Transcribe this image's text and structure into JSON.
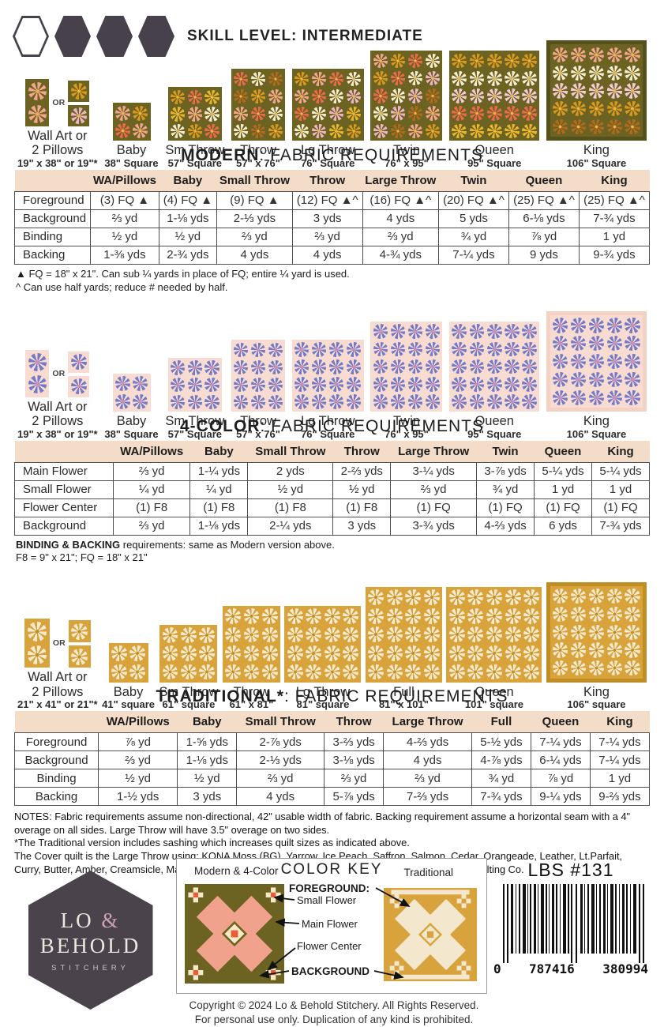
{
  "skill": {
    "label": "SKILL LEVEL: INTERMEDIATE"
  },
  "labels": {
    "or": "OR"
  },
  "modern": {
    "heading": {
      "bold": "MODERN",
      "rest": ": FABRIC REQUIREMENTS"
    },
    "sizes": [
      {
        "name": "Wall Art or",
        "name2": "2 Pillows",
        "dims": "19\" x 38\" or 19\"*"
      },
      {
        "name": "Baby",
        "dims": "38\" Square"
      },
      {
        "name": "Sm Throw",
        "dims": "57\" Square"
      },
      {
        "name": "Throw",
        "dims": "57\" x 76\""
      },
      {
        "name": "Lg Throw",
        "dims": "76\" Square"
      },
      {
        "name": "Twin",
        "dims": "76\" x 95\""
      },
      {
        "name": "Queen",
        "dims": "95\" Square"
      },
      {
        "name": "King",
        "dims": "106\" Square"
      }
    ],
    "table": {
      "headers": [
        "",
        "WA/Pillows",
        "Baby",
        "Small Throw",
        "Throw",
        "Large Throw",
        "Twin",
        "Queen",
        "King"
      ],
      "rows": [
        {
          "label": "Foreground",
          "cells": [
            "(3) FQ ▲",
            "(4) FQ ▲",
            "(9) FQ ▲",
            "(12) FQ ▲^",
            "(16) FQ ▲^",
            "(20) FQ ▲^",
            "(25) FQ ▲^",
            "(25) FQ ▲^"
          ]
        },
        {
          "label": "Background",
          "cells": [
            "⅔ yd",
            "1-⅛ yds",
            "2-⅓ yds",
            "3 yds",
            "4 yds",
            "5 yds",
            "6-⅛ yds",
            "7-¾ yds"
          ]
        },
        {
          "label": "Binding",
          "cells": [
            "½ yd",
            "½ yd",
            "⅔ yd",
            "⅔ yd",
            "⅔ yd",
            "¾ yd",
            "⅞ yd",
            "1 yd"
          ]
        },
        {
          "label": "Backing",
          "cells": [
            "1-⅜ yds",
            "2-¾ yds",
            "4 yds",
            "4 yds",
            "4-¾ yds",
            "7-¼ yds",
            "9 yds",
            "9-¾ yds"
          ]
        }
      ]
    },
    "notes": [
      "▲ FQ = 18\" x 21\". Can sub ¼ yards in place of FQ; entire ¼ yard is used.",
      "^ Can use half yards; reduce # needed by half."
    ]
  },
  "fourcolor": {
    "heading": {
      "bold": "4-COLOR",
      "rest": ": FABRIC REQUIREMENTS"
    },
    "sizes": [
      {
        "name": "Wall Art or",
        "name2": "2 Pillows",
        "dims": "19\" x 38\" or 19\"*"
      },
      {
        "name": "Baby",
        "dims": "38\" Square"
      },
      {
        "name": "Sm Throw",
        "dims": "57\" Square"
      },
      {
        "name": "Throw",
        "dims": "57\" x 76\""
      },
      {
        "name": "Lg Throw",
        "dims": "76\" Square"
      },
      {
        "name": "Twin",
        "dims": "76\" x 95\""
      },
      {
        "name": "Queen",
        "dims": "95\" Square"
      },
      {
        "name": "King",
        "dims": "106\" Square"
      }
    ],
    "table": {
      "headers": [
        "",
        "WA/Pillows",
        "Baby",
        "Small Throw",
        "Throw",
        "Large Throw",
        "Twin",
        "Queen",
        "King"
      ],
      "rows": [
        {
          "label": "Main Flower",
          "cells": [
            "⅔ yd",
            "1-¼ yds",
            "2 yds",
            "2-⅔ yds",
            "3-¼ yds",
            "3-⅞ yds",
            "5-¼ yds",
            "5-¼ yds"
          ]
        },
        {
          "label": "Small Flower",
          "cells": [
            "¼ yd",
            "¼ yd",
            "½ yd",
            "½ yd",
            "⅔ yd",
            "¾ yd",
            "1 yd",
            "1 yd"
          ]
        },
        {
          "label": "Flower Center",
          "cells": [
            "(1) F8",
            "(1) F8",
            "(1) F8",
            "(1) F8",
            "(1) FQ",
            "(1) FQ",
            "(1) FQ",
            "(1) FQ"
          ]
        },
        {
          "label": "Background",
          "cells": [
            "⅔ yd",
            "1-⅛ yds",
            "2-¼ yds",
            "3 yds",
            "3-¾ yds",
            "4-⅔ yds",
            "6 yds",
            "7-¾ yds"
          ]
        }
      ]
    },
    "note_bold": "BINDING & BACKING",
    "note_rest": " requirements: same as Modern version above.",
    "note_line2": "F8 = 9\" x 21\"; FQ = 18\" x 21\""
  },
  "traditional": {
    "heading": {
      "bold": "TRADITIONAL*",
      "rest": ": FABRIC REQUIREMENTS"
    },
    "sizes": [
      {
        "name": "Wall Art or",
        "name2": "2 Pillows",
        "dims": "21\" x 41\" or 21\"*"
      },
      {
        "name": "Baby",
        "dims": "41\" square"
      },
      {
        "name": "Sm Throw",
        "dims": "61\" square"
      },
      {
        "name": "Throw",
        "dims": "61\" x 81\""
      },
      {
        "name": "Lg Throw",
        "dims": "81\" square"
      },
      {
        "name": "Full",
        "dims": "81\" x 101\""
      },
      {
        "name": "Queen",
        "dims": "101\" square"
      },
      {
        "name": "King",
        "dims": "106\" square"
      }
    ],
    "table": {
      "headers": [
        "",
        "WA/Pillows",
        "Baby",
        "Small Throw",
        "Throw",
        "Large Throw",
        "Full",
        "Queen",
        "King"
      ],
      "rows": [
        {
          "label": "Foreground",
          "cells": [
            "⅞ yd",
            "1-⅝ yds",
            "2-⅞ yds",
            "3-⅔ yds",
            "4-⅔ yds",
            "5-½ yds",
            "7-¼ yds",
            "7-¼ yds"
          ]
        },
        {
          "label": "Background",
          "cells": [
            "⅔ yd",
            "1-⅛ yds",
            "2-⅓ yds",
            "3-⅛ yds",
            "4 yds",
            "4-⅞ yds",
            "6-¼ yds",
            "7-¼ yds"
          ]
        },
        {
          "label": "Binding",
          "cells": [
            "½ yd",
            "½ yd",
            "⅔ yd",
            "⅔ yd",
            "⅔ yd",
            "¾ yd",
            "⅞ yd",
            "1 yd"
          ]
        },
        {
          "label": "Backing",
          "cells": [
            "1-½ yds",
            "3 yds",
            "4 yds",
            "5-⅞ yds",
            "7-⅔ yds",
            "7-¾ yds",
            "9-¼ yds",
            "9-⅔ yds"
          ]
        }
      ]
    }
  },
  "notes_footer": [
    "NOTES: Fabric requirements assume non-directional, 42\" usable width of fabric. Backing requirement assume a horizontal seam with a 4\" overage on all sides. Large Throw will have 3.5\" overage on two sides.",
    "*The Traditional version includes sashing which increases quilt sizes as indicated above.",
    "The Cover quilt is the Large Throw using: KONA Moss (BG), Yarrow, Ice Peach, Saffron, Salmon, Cedar, Orangeade, Leather, Lt.Parfait, Curry, Butter, Amber, Creamsicle, Mango, Grellow, Nectarine, Peach. Longarm quilting by: Blue Ridge Quilting Co."
  ],
  "logo": {
    "line1_lo": "LO ",
    "line1_amp": "&",
    "line2": "BEHOLD",
    "line3": "STITCHERY"
  },
  "color_key": {
    "title": "COLOR KEY",
    "left_block_label": "Modern & 4-Color",
    "right_block_label": "Traditional",
    "foreground_label": "FOREGROUND:",
    "small_flower_label": "Small Flower",
    "main_flower_label": "Main Flower",
    "flower_center_label": "Flower Center",
    "background_label": "BACKGROUND"
  },
  "barcode": {
    "sku": "LBS #131",
    "digit_left": "0",
    "digits_mid": "787416",
    "digits_right": "380994"
  },
  "footer": {
    "line1": "Copyright © 2024 Lo & Behold Stitchery. All Rights Reserved.",
    "line2": "For personal use only. Duplication of any kind is prohibited."
  },
  "colors": {
    "table_header_bg": "#f3dcc8",
    "modern_background": "#6c6323",
    "fourcolor_background": "#f8dcd2",
    "fourcolor_flower": "#757ac6",
    "traditional_background": "#d9a33c",
    "traditional_flower": "#f6ead0",
    "logo_hex": "#4a434b",
    "logo_ampersand": "#c9a1b6"
  }
}
